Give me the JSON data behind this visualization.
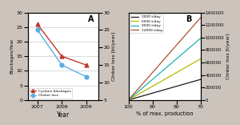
{
  "panel_A": {
    "years": [
      2007,
      2008,
      2009
    ],
    "blockages": [
      26,
      15,
      12
    ],
    "clinker_loss_kt": [
      24,
      12,
      8
    ],
    "blockage_color": "#c0392b",
    "clinker_color": "#5dade2",
    "blockage_marker": "^",
    "clinker_marker": "o",
    "ylabel_left": "Blockages/Year",
    "ylabel_right": "Clinker loss [kt/year]",
    "xlabel": "Year",
    "ylim_left": [
      0,
      30
    ],
    "ylim_right": [
      5,
      30
    ],
    "yticks_left": [
      0,
      5,
      10,
      15,
      20,
      25,
      30
    ],
    "yticks_right": [
      5,
      10,
      15,
      20,
      25,
      30
    ],
    "label_blockages": "Cyclone blockages",
    "label_clinker": "Clinker loss",
    "panel_label": "A"
  },
  "panel_B": {
    "capacities": [
      3000,
      6000,
      9000,
      12000
    ],
    "colors": [
      "#1a1a1a",
      "#b8b800",
      "#20b0b0",
      "#b05030"
    ],
    "labels": [
      "3000 t/day",
      "6000 t/day",
      "9000 t/day",
      "12000 t/day"
    ],
    "xlabel": "% of max. production",
    "ylabel_right": "Clinker loss [t/year]",
    "ylim": [
      0,
      1400000
    ],
    "yticks": [
      0,
      200000,
      400000,
      600000,
      800000,
      1000000,
      1200000,
      1400000
    ],
    "ytick_labels": [
      "0",
      "200000",
      "400000",
      "600000",
      "800000",
      "1000000",
      "1200000",
      "1400000"
    ],
    "xlim_left": 100,
    "xlim_right": 70,
    "xticks": [
      100,
      90,
      80,
      70
    ],
    "panel_label": "B"
  },
  "background_color": "#ccc4bc",
  "axes_bg": "#ffffff"
}
